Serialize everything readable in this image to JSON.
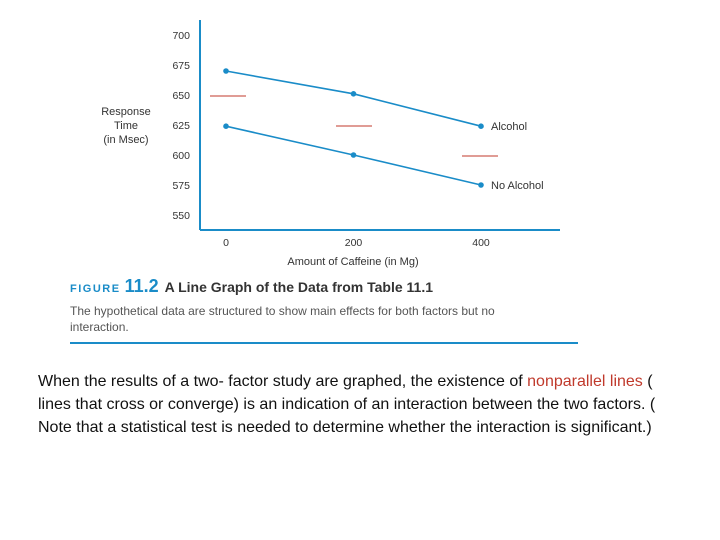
{
  "chart_data": {
    "type": "line",
    "x": [
      0,
      200,
      400
    ],
    "x_ticks": [
      "0",
      "200",
      "400"
    ],
    "y_ticks": [
      "700",
      "675",
      "650",
      "625",
      "600",
      "575",
      "550"
    ],
    "ylim": [
      550,
      700
    ],
    "xlabel": "Amount of Caffeine (in Mg)",
    "ylabel": [
      "Response",
      "Time",
      "(in Msec)"
    ],
    "series": [
      {
        "name": "Alcohol",
        "values": [
          670,
          651,
          624
        ],
        "color": "#1a8cc8"
      },
      {
        "name": "No Alcohol",
        "values": [
          624,
          600,
          575
        ],
        "color": "#1a8cc8"
      }
    ],
    "grid": false
  },
  "caption": {
    "figure_word": "FIGURE",
    "figure_number": "11.2",
    "title": "A Line Graph of the Data from Table 11.1",
    "description": "The hypothetical data are structured to show main effects for both factors but no interaction."
  },
  "body": {
    "part1": "When the results of a two- factor study are graphed, the existence of ",
    "highlight": "nonparallel lines",
    "part2": " ( lines that cross or converge) is an indication of an interaction between the two factors. ( Note that a statistical test is needed to determine whether the interaction is significant.)",
    "highlight_color": "#c0392b"
  }
}
